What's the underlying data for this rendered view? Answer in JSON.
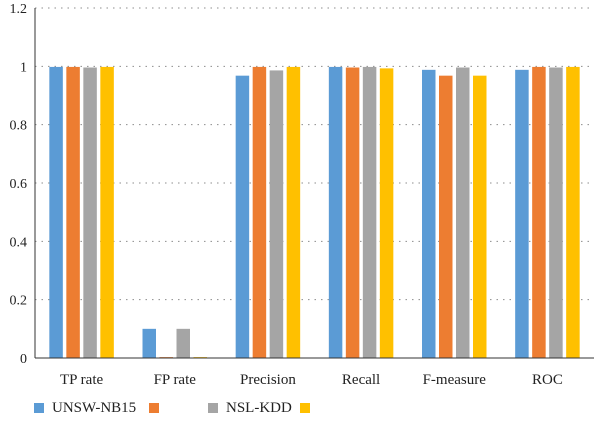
{
  "chart_data": {
    "type": "bar",
    "categories": [
      "TP rate",
      "FP rate",
      "Precision",
      "Recall",
      "F-measure",
      "ROC"
    ],
    "series": [
      {
        "name": "UNSW-NB15",
        "color": "#5B9BD5",
        "values": [
          0.998,
          0.1,
          0.968,
          0.998,
          0.988,
          0.988
        ]
      },
      {
        "name": "",
        "color": "#ED7D31",
        "values": [
          0.998,
          0.003,
          0.998,
          0.996,
          0.968,
          0.998
        ]
      },
      {
        "name": "NSL-KDD",
        "color": "#A5A5A5",
        "values": [
          0.996,
          0.1,
          0.986,
          0.998,
          0.996,
          0.996
        ]
      },
      {
        "name": "",
        "color": "#FFC000",
        "values": [
          0.998,
          0.003,
          0.998,
          0.993,
          0.968,
          0.998
        ]
      }
    ],
    "ylim": [
      0,
      1.2
    ],
    "yticks": [
      "0",
      "0.2",
      "0.4",
      "0.6",
      "0.8",
      "1",
      "1.2"
    ],
    "title": "",
    "xlabel": "",
    "ylabel": "",
    "grid": "horizontal dotted",
    "legend_position": "bottom-left"
  }
}
